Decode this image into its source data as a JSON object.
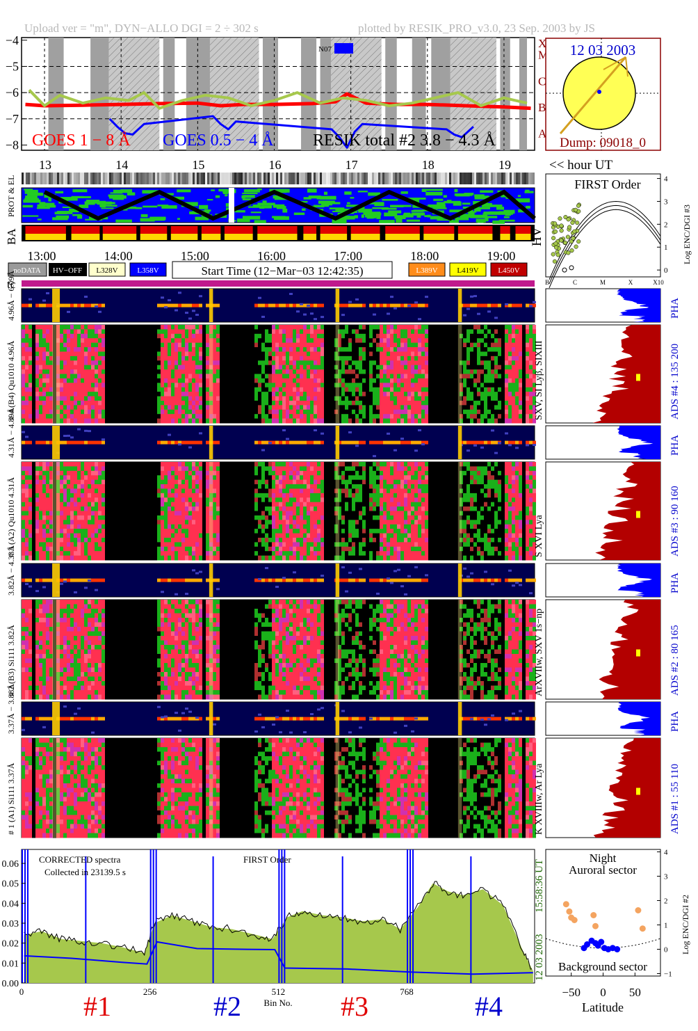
{
  "header": {
    "upload_info": "Upload ver = \"m\", DYN−ALLO DGI =   2 ÷ 302 s",
    "plotted_by": "plotted by RESIK_PRO_v3.0, 23 Sep. 2003 by JS"
  },
  "colors": {
    "goes_long": "#ff0000",
    "goes_short": "#0000ff",
    "resik_total": "#000000",
    "olive": "#a6c84c",
    "orange": "#f4a460",
    "pha_blue": "#0000ff",
    "ads_red": "#b30000",
    "ads_mark": "#ffff00",
    "hv_l328": "#ffffcc",
    "hv_l358": "#0000ff",
    "hv_l389": "#ff8c1a",
    "hv_l419": "#ffff00",
    "hv_l450": "#c00000",
    "title_blue": "#0000cc",
    "dark_red": "#8b0000",
    "dark_green": "#1a6600"
  },
  "chart_data": [
    {
      "type": "line",
      "id": "light-curves",
      "yaxis_ticks": [
        "−4",
        "−5",
        "−6",
        "−7",
        "−8"
      ],
      "ylim": [
        -8.2,
        -3.9
      ],
      "xlim": [
        12.7,
        19.4
      ],
      "goes_classes": [
        "X",
        "M",
        "C",
        "B",
        "A"
      ],
      "series": [
        {
          "name": "GOES 1 − 8 Å",
          "color": "#ff0000",
          "x": [
            12.75,
            13.0,
            13.5,
            14.0,
            14.5,
            15.0,
            15.3,
            15.6,
            16.0,
            16.5,
            16.8,
            16.95,
            17.2,
            17.6,
            18.0,
            18.5,
            19.0,
            19.35
          ],
          "values": [
            -6.45,
            -6.5,
            -6.48,
            -6.45,
            -6.42,
            -6.4,
            -6.5,
            -6.45,
            -6.45,
            -6.42,
            -6.35,
            -6.05,
            -6.4,
            -6.45,
            -6.45,
            -6.5,
            -6.55,
            -6.6
          ]
        },
        {
          "name": "GOES 0.5 − 4 Å",
          "color": "#0000ff",
          "x": [
            13.85,
            13.95,
            14.05,
            14.15,
            14.3,
            15.2,
            15.3,
            15.4,
            15.5,
            16.75,
            16.85,
            16.95,
            17.05,
            17.15,
            18.25,
            18.35,
            18.45,
            18.6
          ],
          "values": [
            -7.0,
            -7.3,
            -7.55,
            -7.6,
            -7.2,
            -6.9,
            -7.2,
            -7.4,
            -7.1,
            -7.4,
            -7.7,
            -8.1,
            -7.5,
            -7.2,
            -7.4,
            -7.6,
            -7.7,
            -7.3
          ]
        },
        {
          "name": "RESIK total #2  3.8 − 4.3 Å",
          "color": "#a6c84c",
          "x": [
            12.8,
            13.0,
            13.2,
            13.5,
            13.8,
            14.1,
            14.3,
            14.5,
            14.8,
            15.1,
            15.4,
            15.7,
            16.0,
            16.3,
            16.6,
            16.9,
            17.2,
            17.5,
            17.8,
            18.1,
            18.4,
            18.7,
            19.0,
            19.3
          ],
          "values": [
            -5.9,
            -6.5,
            -6.1,
            -6.4,
            -6.2,
            -6.3,
            -6.0,
            -6.6,
            -6.3,
            -6.1,
            -6.2,
            -6.5,
            -6.3,
            -6.0,
            -6.4,
            -6.2,
            -6.3,
            -6.5,
            -6.4,
            -6.2,
            -6.0,
            -6.5,
            -6.2,
            -6.4
          ]
        }
      ],
      "legend": [
        "GOES 1 − 8 Å",
        "GOES 0.5 − 4 Å",
        "RESIK total #2  3.8 − 4.3 Å"
      ],
      "annotation": "N07"
    },
    {
      "type": "scatter",
      "id": "first-order",
      "title": "FIRST Order",
      "ylabel": "Log ENC/DGI #3",
      "yticks": [
        "4",
        "3",
        "2",
        "1",
        "0"
      ],
      "xticks": [
        "B",
        "C",
        "M",
        "X",
        "X10"
      ]
    },
    {
      "type": "line",
      "id": "spectrum",
      "yticks": [
        "0.06",
        "0.05",
        "0.04",
        "0.03",
        "0.02",
        "0.01",
        "0.00"
      ],
      "ylim": [
        0,
        0.067
      ],
      "xticks": [
        "0",
        "256",
        "512",
        "768"
      ],
      "xlabel": "Bin No.",
      "xlim": [
        0,
        1023
      ],
      "series": [
        {
          "name": "corrected",
          "color": "#000000",
          "x": [
            5,
            40,
            80,
            120,
            160,
            200,
            245,
            265,
            300,
            340,
            380,
            420,
            470,
            500,
            530,
            560,
            600,
            640,
            680,
            720,
            755,
            790,
            820,
            850,
            880,
            920,
            960,
            1000,
            1020
          ],
          "values": [
            0.024,
            0.026,
            0.022,
            0.021,
            0.02,
            0.018,
            0.015,
            0.03,
            0.034,
            0.031,
            0.028,
            0.027,
            0.024,
            0.022,
            0.033,
            0.036,
            0.034,
            0.033,
            0.031,
            0.032,
            0.027,
            0.038,
            0.05,
            0.046,
            0.044,
            0.047,
            0.039,
            0.016,
            0.006
          ]
        },
        {
          "name": "background",
          "color": "#0000ff",
          "x": [
            5,
            100,
            200,
            250,
            270,
            350,
            450,
            505,
            525,
            650,
            760,
            780,
            900,
            1020
          ],
          "values": [
            0.013,
            0.012,
            0.011,
            0.01,
            0.02,
            0.018,
            0.017,
            0.016,
            0.008,
            0.007,
            0.006,
            0.005,
            0.005,
            0.005
          ]
        }
      ]
    },
    {
      "type": "scatter",
      "id": "latitude",
      "xlabel": "Latitude",
      "xticks": [
        "−50",
        "0",
        "50"
      ],
      "ylabel": "Log ENC/DGI #2",
      "yticks": [
        "4",
        "3",
        "2",
        "1",
        "0",
        "−1"
      ],
      "xlim": [
        -90,
        90
      ],
      "ylim": [
        -1.1,
        4.1
      ],
      "points_orange": [
        [
          -58,
          1.85
        ],
        [
          -53,
          1.55
        ],
        [
          -50,
          1.3
        ],
        [
          -45,
          1.2
        ],
        [
          -15,
          1.4
        ],
        [
          -12,
          0.95
        ],
        [
          55,
          1.6
        ],
        [
          62,
          0.85
        ]
      ],
      "points_blue": [
        [
          -30,
          0.05
        ],
        [
          -25,
          0.2
        ],
        [
          -18,
          0.35
        ],
        [
          -12,
          0.25
        ],
        [
          -8,
          0.15
        ],
        [
          -3,
          0.3
        ],
        [
          2,
          0.05
        ],
        [
          8,
          0.0
        ],
        [
          15,
          0.05
        ],
        [
          22,
          0.0
        ]
      ]
    }
  ],
  "header_times": [
    "13",
    "14",
    "15",
    "16",
    "17",
    "18",
    "19"
  ],
  "sun": {
    "date": "12 03 2003",
    "dump": "Dump: 09018_0"
  },
  "hour_ut": "<< hour UT",
  "panel_labels": {
    "prot_el": "PROT & EL",
    "ba": "BA",
    "hv": "HV",
    "tc": "tc"
  },
  "time_axis": [
    "13:00",
    "14:00",
    "15:00",
    "16:00",
    "17:00",
    "18:00",
    "19:00"
  ],
  "hv_legend": {
    "nodata": "noDATA",
    "hvoff": "HV−OFF",
    "l328": "L328V",
    "l358": "L358V",
    "start_time": "Start Time (12−Mar−03 12:42:35)",
    "l389": "L389V",
    "l419": "L419V",
    "l450": "L450V"
  },
  "channels": [
    {
      "pha_label": "4.96Å − 6.09Å",
      "label": "# 4 (B4) Qu1010 4.96Å",
      "lines": "SXV, SI Lyβ, SIXIII",
      "ads": "ADS #4 :   135 200"
    },
    {
      "pha_label": "4.31Å − 4.89Å",
      "label": "# 3 (A2) Qu1010 4.31Å",
      "lines": "S XVI Lya",
      "ads": "ADS #3 :    90 160"
    },
    {
      "pha_label": "3.82Å − 4.33Å",
      "label": "# 2 (B3) Si111 3.82Å",
      "lines": "ArXVIIw, SXV 1s−np",
      "ads": "ADS #2 :    80 165"
    },
    {
      "pha_label": "3.37Å − 3.88Å",
      "label": "# 1 (A1) Si111 3.37Å",
      "lines": "K XVIIIw, Ar Lya",
      "ads": "ADS #1 :    55 110"
    }
  ],
  "pha": "PHA",
  "spectrum_text": {
    "corrected": "CORRECTED spectra",
    "collected": "Collected in 23139.5 s",
    "first_order": "FIRST Order",
    "time": "15:58:36 UT",
    "date": "12 03 2003"
  },
  "channel_numbers": [
    "#1",
    "#2",
    "#3",
    "#4"
  ],
  "latitude_text": {
    "night": "Night",
    "auroral": "Auroral sector",
    "background": "Background sector"
  }
}
